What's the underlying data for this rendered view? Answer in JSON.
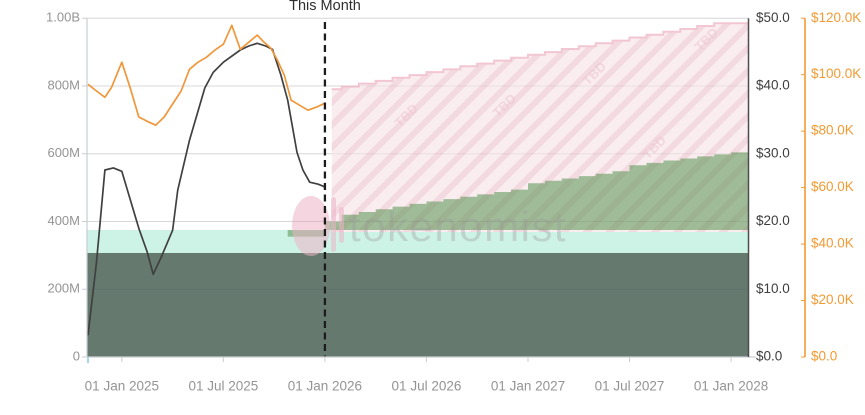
{
  "annotations": {
    "this_month_label": "This Month"
  },
  "watermark": {
    "brand": "tokenomist",
    "tbd_label": "TBD"
  },
  "axes": {
    "left_supply": {
      "ticks": [
        "1.00B",
        "800M",
        "600M",
        "400M",
        "200M",
        "0"
      ],
      "range_millions": [
        0,
        1000
      ]
    },
    "right_price": {
      "ticks": [
        "$50.0",
        "$40.0",
        "$30.0",
        "$20.0",
        "$10.0",
        "$0.0"
      ],
      "range_usd": [
        0,
        50
      ]
    },
    "right_orange": {
      "ticks": [
        "$120.0K",
        "$100.0K",
        "$80.0K",
        "$60.0K",
        "$40.0K",
        "$20.0K",
        "$0.0"
      ],
      "range_usd_k": [
        0,
        120
      ]
    },
    "x_time": {
      "ticks": [
        "01 Jan 2025",
        "01 Jul 2025",
        "01 Jan 2026",
        "01 Jul 2026",
        "01 Jan 2027",
        "01 Jul 2027",
        "01 Jan 2028"
      ],
      "tick_month_offsets": [
        2,
        8,
        14,
        20,
        26,
        32,
        38
      ]
    }
  },
  "colors": {
    "price_line": "#404040",
    "orange_line": "#f0973b",
    "orange_axis": "#f39a33",
    "green_fill": "rgba(86,146,78,0.55)",
    "pink_fill": "#f9edf0",
    "pink_hatch": "rgba(233,183,196,0.35)",
    "pink_edge": "#f2c6d2",
    "teal_band": "#cdf3e6",
    "dark_band": "#65796f",
    "gridline": "#e6e6e6",
    "grid_overlay": "rgba(40,40,40,0.07)",
    "axis_light": "#c9ced3",
    "axis_dark": "#4d4d4d",
    "label_gray": "#949494",
    "label_dark": "#3d3d3d",
    "dashed_line": "#1c1c1c",
    "watermark_gray": "#9a9a9a",
    "tbd_pink": "#efc4cf",
    "corner_tick_blue": "#a9d4e6"
  },
  "chart_data": {
    "type": "mixed-line-step-area",
    "time_axis_note": "month_offset 0 = Nov 2024; labeled ticks Jan/Jul 2025-2028",
    "divider_month_offset": 14,
    "bands_millions": {
      "dark_flat": 307,
      "teal_flat": 375
    },
    "series": [
      {
        "name": "price-line-usd",
        "axis": "right_price",
        "style": "line",
        "color_key": "price_line",
        "points": [
          [
            0,
            3.2
          ],
          [
            0.5,
            14.0
          ],
          [
            1,
            27.6
          ],
          [
            1.5,
            27.9
          ],
          [
            2,
            27.4
          ],
          [
            2.5,
            23.2
          ],
          [
            3,
            19.0
          ],
          [
            3.5,
            15.5
          ],
          [
            3.85,
            12.2
          ],
          [
            4.3,
            14.6
          ],
          [
            5,
            18.7
          ],
          [
            5.3,
            24.6
          ],
          [
            6,
            32.0
          ],
          [
            6.9,
            39.7
          ],
          [
            7.4,
            42.0
          ],
          [
            8,
            43.5
          ],
          [
            9,
            45.3
          ],
          [
            9.5,
            45.9
          ],
          [
            10,
            46.3
          ],
          [
            10.5,
            45.9
          ],
          [
            10.9,
            45.4
          ],
          [
            11.4,
            41.6
          ],
          [
            11.8,
            37.9
          ],
          [
            12.35,
            30.2
          ],
          [
            12.7,
            27.6
          ],
          [
            13.1,
            25.8
          ],
          [
            13.6,
            25.5
          ],
          [
            14,
            25.1
          ]
        ]
      },
      {
        "name": "orange-line-usd-k",
        "axis": "right_orange",
        "style": "line",
        "color_key": "orange_line",
        "points": [
          [
            0,
            96.6
          ],
          [
            0.5,
            94.2
          ],
          [
            1,
            92.0
          ],
          [
            1.4,
            95.6
          ],
          [
            2,
            104.4
          ],
          [
            2.5,
            95.2
          ],
          [
            3,
            85.0
          ],
          [
            3.5,
            83.5
          ],
          [
            4,
            82.1
          ],
          [
            4.5,
            85.0
          ],
          [
            5,
            89.6
          ],
          [
            5.5,
            94.2
          ],
          [
            6,
            101.9
          ],
          [
            6.5,
            104.4
          ],
          [
            7,
            106.2
          ],
          [
            7.5,
            108.7
          ],
          [
            8,
            110.8
          ],
          [
            8.5,
            117.5
          ],
          [
            9,
            109.0
          ],
          [
            9.5,
            111.5
          ],
          [
            10,
            114.0
          ],
          [
            10.4,
            111.5
          ],
          [
            10.8,
            109.4
          ],
          [
            11.2,
            105.1
          ],
          [
            11.6,
            99.8
          ],
          [
            12,
            91.0
          ],
          [
            12.5,
            89.2
          ],
          [
            13,
            87.4
          ],
          [
            13.5,
            88.5
          ],
          [
            14,
            89.9
          ]
        ]
      },
      {
        "name": "unlocked-supply-projection-millions",
        "axis": "left_supply",
        "style": "step-area",
        "color_key": "green_fill",
        "points": [
          [
            11.8,
            373
          ],
          [
            13,
            373
          ],
          [
            14,
            400
          ],
          [
            15,
            420
          ],
          [
            16,
            428
          ],
          [
            17,
            436
          ],
          [
            18,
            444
          ],
          [
            19,
            452
          ],
          [
            20,
            459
          ],
          [
            21,
            466
          ],
          [
            22,
            473
          ],
          [
            23,
            480
          ],
          [
            24,
            487
          ],
          [
            25,
            494
          ],
          [
            26,
            513
          ],
          [
            27,
            520
          ],
          [
            28,
            527
          ],
          [
            29,
            534
          ],
          [
            30,
            541
          ],
          [
            31,
            548
          ],
          [
            32,
            566
          ],
          [
            33,
            573
          ],
          [
            34,
            580
          ],
          [
            35,
            586
          ],
          [
            36,
            592
          ],
          [
            37,
            598
          ],
          [
            38,
            604
          ],
          [
            39,
            610
          ]
        ]
      },
      {
        "name": "total-supply-projection-millions",
        "axis": "left_supply",
        "style": "step-area-hatched",
        "color_key": "pink_fill",
        "points": [
          [
            14.4,
            790
          ],
          [
            15,
            798
          ],
          [
            16,
            807
          ],
          [
            17,
            815
          ],
          [
            18,
            824
          ],
          [
            19,
            832
          ],
          [
            20,
            841
          ],
          [
            21,
            849
          ],
          [
            22,
            858
          ],
          [
            23,
            866
          ],
          [
            24,
            875
          ],
          [
            25,
            883
          ],
          [
            26,
            892
          ],
          [
            27,
            900
          ],
          [
            28,
            909
          ],
          [
            29,
            917
          ],
          [
            30,
            926
          ],
          [
            31,
            934
          ],
          [
            32,
            943
          ],
          [
            33,
            951
          ],
          [
            34,
            960
          ],
          [
            35,
            968
          ],
          [
            36,
            977
          ],
          [
            37,
            985
          ],
          [
            38,
            985
          ],
          [
            39,
            985
          ]
        ]
      }
    ]
  }
}
